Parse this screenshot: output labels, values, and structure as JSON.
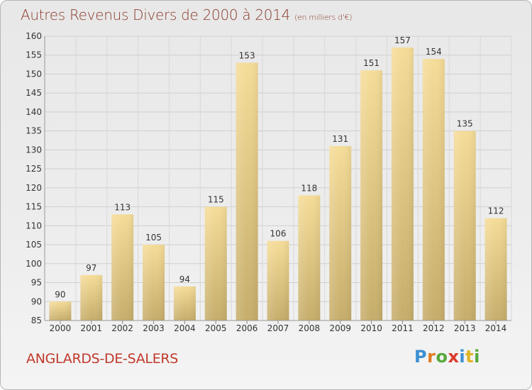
{
  "chart_data": {
    "type": "bar",
    "title": "Autres Revenus Divers de 2000 à 2014",
    "subtitle": "(en milliers d'€)",
    "categories": [
      "2000",
      "2001",
      "2002",
      "2003",
      "2004",
      "2005",
      "2006",
      "2007",
      "2008",
      "2009",
      "2010",
      "2011",
      "2012",
      "2013",
      "2014"
    ],
    "values": [
      90,
      97,
      113,
      105,
      94,
      115,
      153,
      106,
      118,
      131,
      151,
      157,
      154,
      135,
      112
    ],
    "ylim": [
      85,
      160
    ],
    "yticks": [
      85,
      90,
      95,
      100,
      105,
      110,
      115,
      120,
      125,
      130,
      135,
      140,
      145,
      150,
      155,
      160
    ],
    "grid": true,
    "bar_color": "#e8cf85"
  },
  "footer": {
    "commune": "ANGLARDS-DE-SALERS",
    "logo": "Proxiti"
  }
}
